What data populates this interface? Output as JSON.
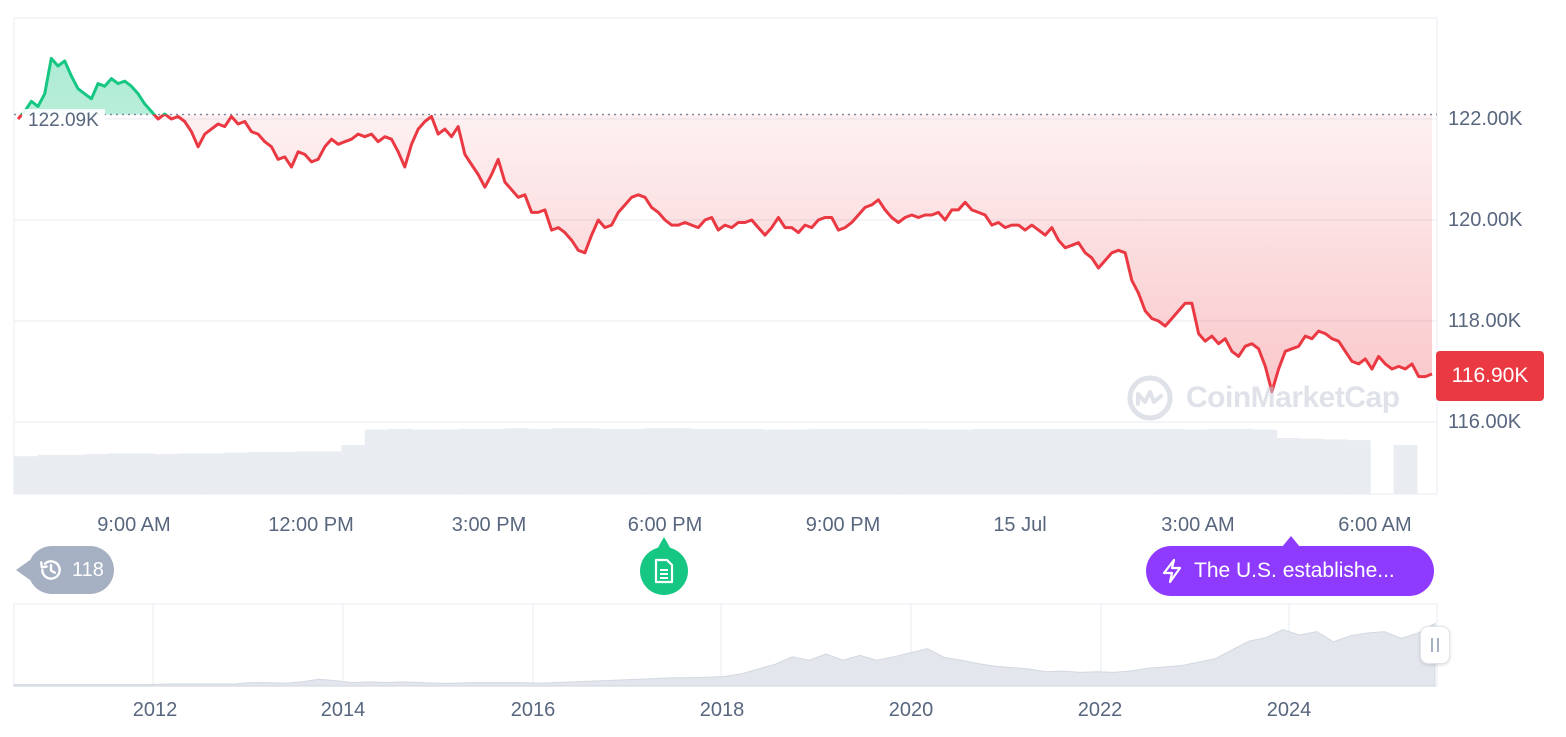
{
  "chart_data": {
    "type": "area",
    "y_axis": {
      "ylim": [
        116000,
        124000
      ],
      "ticks": [
        "122.00K",
        "120.00K",
        "118.00K",
        "116.00K"
      ],
      "tick_values": [
        122000,
        120000,
        118000,
        116000
      ]
    },
    "x_axis": {
      "ticks": [
        "9:00 AM",
        "12:00 PM",
        "3:00 PM",
        "6:00 PM",
        "9:00 PM",
        "15 Jul",
        "3:00 AM",
        "6:00 AM"
      ],
      "range_hours": [
        "07:00",
        "06:58"
      ]
    },
    "open_price_label": "122.09K",
    "open_price": 122090,
    "current_price_label": "116.90K",
    "current_price": 116900,
    "colors": {
      "up": "#16c784",
      "down": "#ea3943",
      "grid": "#eff2f5",
      "volume": "#e9ecf1",
      "tag": "#ea3943"
    },
    "series": [
      {
        "values": [
          122000,
          122150,
          122350,
          122250,
          122500,
          123200,
          123050,
          123150,
          122850,
          122600,
          122500,
          122400,
          122700,
          122650,
          122800,
          122700,
          122750,
          122650,
          122500,
          122300,
          122150,
          122000,
          122100,
          122000,
          122050,
          121950,
          121750,
          121450,
          121700,
          121800,
          121900,
          121850,
          122050,
          121900,
          121950,
          121750,
          121700,
          121550,
          121450,
          121200,
          121250,
          121050,
          121350,
          121300,
          121150,
          121200,
          121450,
          121600,
          121500,
          121550,
          121600,
          121700,
          121650,
          121700,
          121550,
          121650,
          121600,
          121350,
          121050,
          121500,
          121800,
          121950,
          122050,
          121700,
          121800,
          121650,
          121850,
          121300,
          121100,
          120900,
          120650,
          120900,
          121200,
          120750,
          120600,
          120450,
          120500,
          120150,
          120150,
          120200,
          119800,
          119850,
          119750,
          119600,
          119400,
          119350,
          119700,
          120000,
          119850,
          119900,
          120150,
          120300,
          120450,
          120500,
          120450,
          120250,
          120150,
          120000,
          119900,
          119900,
          119950,
          119900,
          119850,
          120000,
          120050,
          119800,
          119900,
          119850,
          119950,
          119950,
          120000,
          119850,
          119700,
          119850,
          120050,
          119850,
          119850,
          119750,
          119900,
          119850,
          120000,
          120050,
          120050,
          119800,
          119850,
          119950,
          120100,
          120250,
          120300,
          120400,
          120200,
          120050,
          119950,
          120050,
          120100,
          120050,
          120100,
          120100,
          120150,
          120000,
          120200,
          120200,
          120350,
          120200,
          120150,
          120100,
          119900,
          119950,
          119850,
          119900,
          119900,
          119800,
          119900,
          119800,
          119700,
          119850,
          119600,
          119450,
          119500,
          119550,
          119350,
          119250,
          119050,
          119200,
          119350,
          119400,
          119350,
          118800,
          118550,
          118200,
          118050,
          118000,
          117900,
          118050,
          118200,
          118350,
          118350,
          117750,
          117600,
          117700,
          117550,
          117650,
          117400,
          117300,
          117500,
          117550,
          117450,
          117100,
          116600,
          117050,
          117400,
          117450,
          117500,
          117700,
          117650,
          117800,
          117750,
          117650,
          117600,
          117400,
          117200,
          117150,
          117250,
          117050,
          117300,
          117150,
          117050,
          117100,
          117050,
          117150,
          116900,
          116900,
          116950
        ]
      },
      {
        "name": "volume",
        "values": [
          0.54,
          0.56,
          0.56,
          0.57,
          0.58,
          0.58,
          0.57,
          0.58,
          0.58,
          0.59,
          0.6,
          0.6,
          0.61,
          0.61,
          0.7,
          0.92,
          0.93,
          0.92,
          0.92,
          0.93,
          0.93,
          0.94,
          0.93,
          0.94,
          0.94,
          0.93,
          0.93,
          0.94,
          0.94,
          0.93,
          0.93,
          0.93,
          0.92,
          0.92,
          0.93,
          0.93,
          0.93,
          0.93,
          0.93,
          0.92,
          0.92,
          0.93,
          0.93,
          0.93,
          0.93,
          0.93,
          0.93,
          0.93,
          0.93,
          0.93,
          0.92,
          0.93,
          0.93,
          0.92,
          0.8,
          0.79,
          0.78,
          0.77,
          0.0,
          0.7
        ]
      },
      {
        "name": "overview",
        "values": [
          0.02,
          0.02,
          0.02,
          0.02,
          0.02,
          0.02,
          0.02,
          0.02,
          0.02,
          0.03,
          0.03,
          0.03,
          0.03,
          0.03,
          0.05,
          0.05,
          0.04,
          0.06,
          0.1,
          0.08,
          0.05,
          0.06,
          0.05,
          0.06,
          0.05,
          0.04,
          0.04,
          0.05,
          0.05,
          0.05,
          0.05,
          0.04,
          0.05,
          0.06,
          0.07,
          0.08,
          0.09,
          0.1,
          0.11,
          0.12,
          0.12,
          0.13,
          0.14,
          0.18,
          0.25,
          0.32,
          0.43,
          0.38,
          0.47,
          0.38,
          0.45,
          0.38,
          0.43,
          0.49,
          0.55,
          0.42,
          0.38,
          0.33,
          0.29,
          0.27,
          0.25,
          0.21,
          0.22,
          0.2,
          0.21,
          0.2,
          0.22,
          0.26,
          0.28,
          0.3,
          0.35,
          0.4,
          0.53,
          0.66,
          0.71,
          0.83,
          0.75,
          0.8,
          0.65,
          0.74,
          0.78,
          0.8,
          0.7,
          0.78,
          0.92
        ]
      }
    ],
    "overview_ticks": [
      "2012",
      "2014",
      "2016",
      "2018",
      "2020",
      "2022",
      "2024"
    ]
  },
  "events": {
    "history_count": "118",
    "news_headline": "The U.S. establishe..."
  },
  "watermark": "CoinMarketCap",
  "icons": {
    "history": "history-icon",
    "note": "document-icon",
    "news": "lightning-icon",
    "brand": "coinmarketcap-logo-icon"
  }
}
